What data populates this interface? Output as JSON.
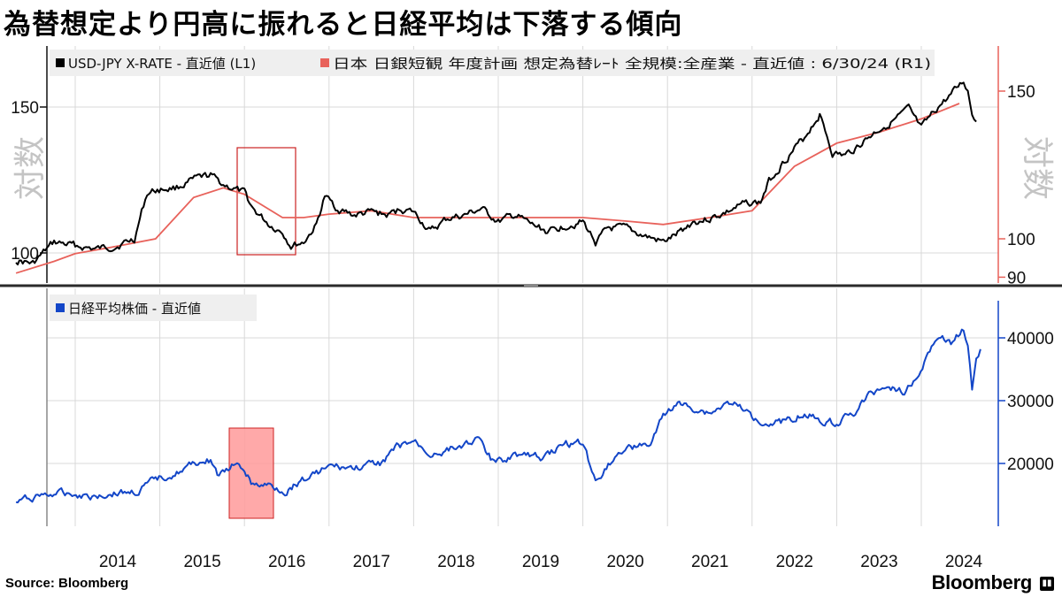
{
  "title": "為替想定より円高に振れると日経平均は下落する傾向",
  "source": "Source:  Bloomberg",
  "brand": "Bloomberg",
  "colors": {
    "usdjpy": "#000000",
    "assumed_rate": "#e8625b",
    "nikkei": "#1346c8",
    "highlight_box_top": "#cc2222",
    "highlight_fill_bottom": "#ff9a9a",
    "right_axis_top": "#e8625b",
    "right_axis_bottom": "#1346c8"
  },
  "chart_data": [
    {
      "type": "line",
      "panel": "top",
      "left_axis_note": "対数",
      "right_axis_note": "対数",
      "scale": "log",
      "left_ticks": [
        100,
        150
      ],
      "right_ticks": [
        90,
        100,
        150
      ],
      "series": [
        {
          "name": "USD-JPY X-RATE - 直近値 (L1)",
          "axis": "left",
          "color_key": "usdjpy",
          "points": [
            [
              2013.3,
              98
            ],
            [
              2013.5,
              97
            ],
            [
              2013.75,
              103
            ],
            [
              2014.0,
              102
            ],
            [
              2014.25,
              101
            ],
            [
              2014.5,
              102
            ],
            [
              2014.7,
              104
            ],
            [
              2014.85,
              118
            ],
            [
              2014.95,
              119
            ],
            [
              2015.2,
              120
            ],
            [
              2015.45,
              123
            ],
            [
              2015.6,
              124
            ],
            [
              2015.75,
              121
            ],
            [
              2016.0,
              118
            ],
            [
              2016.1,
              113
            ],
            [
              2016.3,
              108
            ],
            [
              2016.45,
              106
            ],
            [
              2016.55,
              102
            ],
            [
              2016.7,
              103
            ],
            [
              2016.85,
              108
            ],
            [
              2016.95,
              117
            ],
            [
              2017.1,
              113
            ],
            [
              2017.3,
              111
            ],
            [
              2017.5,
              112
            ],
            [
              2017.7,
              111
            ],
            [
              2017.85,
              113
            ],
            [
              2018.0,
              112
            ],
            [
              2018.2,
              106
            ],
            [
              2018.4,
              110
            ],
            [
              2018.6,
              111
            ],
            [
              2018.8,
              113
            ],
            [
              2019.0,
              109
            ],
            [
              2019.2,
              111
            ],
            [
              2019.4,
              108
            ],
            [
              2019.6,
              106
            ],
            [
              2019.8,
              108
            ],
            [
              2020.0,
              109
            ],
            [
              2020.15,
              103
            ],
            [
              2020.3,
              107
            ],
            [
              2020.5,
              107
            ],
            [
              2020.7,
              105
            ],
            [
              2020.95,
              103
            ],
            [
              2021.1,
              105
            ],
            [
              2021.3,
              109
            ],
            [
              2021.5,
              110
            ],
            [
              2021.7,
              112
            ],
            [
              2021.95,
              115
            ],
            [
              2022.1,
              115
            ],
            [
              2022.2,
              122
            ],
            [
              2022.4,
              130
            ],
            [
              2022.6,
              137
            ],
            [
              2022.8,
              147
            ],
            [
              2022.95,
              132
            ],
            [
              2023.1,
              131
            ],
            [
              2023.3,
              136
            ],
            [
              2023.5,
              141
            ],
            [
              2023.7,
              145
            ],
            [
              2023.85,
              149
            ],
            [
              2024.0,
              141
            ],
            [
              2024.2,
              150
            ],
            [
              2024.35,
              155
            ],
            [
              2024.5,
              161
            ],
            [
              2024.55,
              157
            ],
            [
              2024.6,
              147
            ],
            [
              2024.65,
              144
            ]
          ]
        },
        {
          "name": "日本 日銀短観 年度計画 想定為替ﾚｰﾄ 全規模:全産業 - 直近値 : 6/30/24 (R1)",
          "axis": "right",
          "color_key": "assumed_rate",
          "points": [
            [
              2013.3,
              91
            ],
            [
              2013.75,
              94
            ],
            [
              2014.0,
              96
            ],
            [
              2014.5,
              98
            ],
            [
              2014.95,
              100
            ],
            [
              2015.4,
              112
            ],
            [
              2015.75,
              115
            ],
            [
              2016.0,
              113
            ],
            [
              2016.45,
              106
            ],
            [
              2016.7,
              106
            ],
            [
              2017.0,
              107
            ],
            [
              2017.5,
              108
            ],
            [
              2018.0,
              106
            ],
            [
              2018.5,
              106
            ],
            [
              2019.0,
              106
            ],
            [
              2019.5,
              106
            ],
            [
              2020.0,
              106
            ],
            [
              2020.5,
              105
            ],
            [
              2020.95,
              104
            ],
            [
              2021.5,
              106
            ],
            [
              2022.0,
              108
            ],
            [
              2022.5,
              122
            ],
            [
              2023.0,
              130
            ],
            [
              2023.5,
              134
            ],
            [
              2024.0,
              139
            ],
            [
              2024.45,
              145
            ]
          ]
        }
      ]
    },
    {
      "type": "line",
      "panel": "bottom",
      "right_ticks": [
        20000,
        30000,
        40000
      ],
      "series": [
        {
          "name": "日経平均株価 - 直近値",
          "axis": "right",
          "color_key": "nikkei",
          "points": [
            [
              2013.3,
              13800
            ],
            [
              2013.6,
              15000
            ],
            [
              2013.9,
              15300
            ],
            [
              2014.2,
              14800
            ],
            [
              2014.5,
              15300
            ],
            [
              2014.75,
              15500
            ],
            [
              2014.95,
              17500
            ],
            [
              2015.2,
              18500
            ],
            [
              2015.45,
              20200
            ],
            [
              2015.6,
              20500
            ],
            [
              2015.7,
              17800
            ],
            [
              2015.85,
              19500
            ],
            [
              2016.0,
              19000
            ],
            [
              2016.1,
              16500
            ],
            [
              2016.3,
              16500
            ],
            [
              2016.5,
              15500
            ],
            [
              2016.6,
              16800
            ],
            [
              2016.85,
              18500
            ],
            [
              2017.0,
              19500
            ],
            [
              2017.3,
              19200
            ],
            [
              2017.6,
              20000
            ],
            [
              2017.8,
              22500
            ],
            [
              2018.0,
              23500
            ],
            [
              2018.2,
              21500
            ],
            [
              2018.5,
              22500
            ],
            [
              2018.75,
              24000
            ],
            [
              2018.95,
              20000
            ],
            [
              2019.2,
              21500
            ],
            [
              2019.5,
              21000
            ],
            [
              2019.8,
              23000
            ],
            [
              2020.0,
              23500
            ],
            [
              2020.15,
              17000
            ],
            [
              2020.3,
              20000
            ],
            [
              2020.5,
              22500
            ],
            [
              2020.8,
              23000
            ],
            [
              2020.95,
              27500
            ],
            [
              2021.1,
              29500
            ],
            [
              2021.3,
              28800
            ],
            [
              2021.5,
              28000
            ],
            [
              2021.75,
              29800
            ],
            [
              2022.0,
              27500
            ],
            [
              2022.2,
              26500
            ],
            [
              2022.4,
              26800
            ],
            [
              2022.6,
              28000
            ],
            [
              2022.8,
              27000
            ],
            [
              2023.0,
              26500
            ],
            [
              2023.2,
              28000
            ],
            [
              2023.4,
              31000
            ],
            [
              2023.6,
              32500
            ],
            [
              2023.8,
              31500
            ],
            [
              2023.95,
              33500
            ],
            [
              2024.1,
              38000
            ],
            [
              2024.25,
              40500
            ],
            [
              2024.35,
              39000
            ],
            [
              2024.5,
              41500
            ],
            [
              2024.55,
              39000
            ],
            [
              2024.6,
              31500
            ],
            [
              2024.65,
              36500
            ],
            [
              2024.7,
              38200
            ]
          ]
        }
      ]
    }
  ],
  "x_axis": {
    "labels": [
      "2014",
      "2015",
      "2016",
      "2017",
      "2018",
      "2019",
      "2020",
      "2021",
      "2022",
      "2023",
      "2024"
    ]
  }
}
